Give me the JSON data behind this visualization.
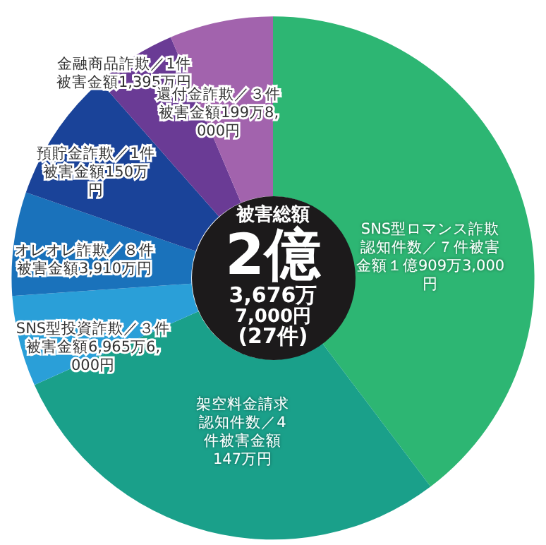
{
  "chart_data": {
    "type": "donut",
    "categories": [
      "SNS型ロマンス詐欺認知件数／７件被害金額１億909万3,000円",
      "架空料金請求認知件数／4件被害金額147万円",
      "SNS型投資詐欺／３件被害金額6,965万6,000円",
      "オレオレ詐欺／８件被害金額3,910万円",
      "預貯金詐欺／1件被害金額150万円",
      "金融商品詐欺／1件被害金額1,395万円",
      "還付金詐欺／３件被害金額199万8,000円"
    ],
    "values": [
      39.7,
      28.6,
      5.6,
      6.4,
      8.2,
      5.1,
      6.4
    ],
    "colors": [
      "#2db673",
      "#1aa08a",
      "#2a9fd8",
      "#1a72bb",
      "#1a4399",
      "#6a3b95",
      "#a263ad"
    ],
    "annotations": [
      "被害総額",
      "2億",
      "3,676万",
      "7,000円",
      "(27件)"
    ],
    "legend": false
  }
}
